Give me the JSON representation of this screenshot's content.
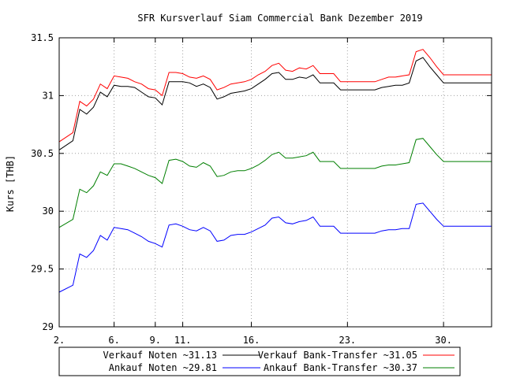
{
  "chart_data": {
    "type": "line",
    "title": "SFR Kursverlauf Siam Commercial Bank Dezember 2019",
    "ylabel": "Kurs [THB]",
    "xlabel": "",
    "xlim": [
      2,
      33.5
    ],
    "ylim": [
      29,
      31.5
    ],
    "grid": true,
    "legend_position": "bottom",
    "x_ticks": [
      {
        "x": 2,
        "label": "2."
      },
      {
        "x": 6,
        "label": "6."
      },
      {
        "x": 9,
        "label": "9."
      },
      {
        "x": 11,
        "label": "11."
      },
      {
        "x": 16,
        "label": "16."
      },
      {
        "x": 23,
        "label": "23."
      },
      {
        "x": 30,
        "label": "30."
      }
    ],
    "y_ticks": [
      {
        "y": 29,
        "label": "29"
      },
      {
        "y": 29.5,
        "label": "29.5"
      },
      {
        "y": 30,
        "label": "30"
      },
      {
        "y": 30.5,
        "label": "30.5"
      },
      {
        "y": 31,
        "label": "31"
      },
      {
        "y": 31.5,
        "label": "31.5"
      }
    ],
    "x": [
      2,
      3,
      3.5,
      4,
      4.5,
      5,
      5.5,
      6,
      6.5,
      7,
      7.5,
      8,
      8.5,
      9,
      9.5,
      10,
      10.5,
      11,
      11.5,
      12,
      12.5,
      13,
      13.5,
      14,
      14.5,
      15,
      15.5,
      16,
      16.5,
      17,
      17.5,
      18,
      18.5,
      19,
      19.5,
      20,
      20.5,
      21,
      21.5,
      22,
      22.5,
      23,
      23.5,
      24,
      24.5,
      25,
      25.5,
      26,
      26.5,
      27,
      27.5,
      28,
      28.5,
      29,
      29.5,
      30,
      30.5,
      31,
      31.5,
      32,
      32.5,
      33,
      33.5
    ],
    "series": [
      {
        "name": "Verkauf Noten ~31.13",
        "color": "#000000",
        "values": [
          30.53,
          30.61,
          30.88,
          30.84,
          30.9,
          31.03,
          30.99,
          31.09,
          31.08,
          31.08,
          31.07,
          31.03,
          30.99,
          30.98,
          30.92,
          31.12,
          31.12,
          31.12,
          31.11,
          31.08,
          31.1,
          31.07,
          30.97,
          30.99,
          31.02,
          31.03,
          31.04,
          31.06,
          31.1,
          31.14,
          31.19,
          31.2,
          31.14,
          31.14,
          31.16,
          31.15,
          31.18,
          31.11,
          31.11,
          31.11,
          31.05,
          31.05,
          31.05,
          31.05,
          31.05,
          31.05,
          31.07,
          31.08,
          31.09,
          31.09,
          31.11,
          31.3,
          31.33,
          31.25,
          31.18,
          31.11,
          31.11,
          31.11,
          31.11,
          31.11,
          31.11,
          31.11,
          31.11
        ]
      },
      {
        "name": "Ankauf Noten ~29.81",
        "color": "#0000ff",
        "values": [
          29.3,
          29.36,
          29.63,
          29.6,
          29.66,
          29.79,
          29.75,
          29.86,
          29.85,
          29.84,
          29.81,
          29.78,
          29.74,
          29.72,
          29.69,
          29.88,
          29.89,
          29.87,
          29.84,
          29.83,
          29.86,
          29.83,
          29.74,
          29.75,
          29.79,
          29.8,
          29.8,
          29.82,
          29.85,
          29.88,
          29.94,
          29.95,
          29.9,
          29.89,
          29.91,
          29.92,
          29.95,
          29.87,
          29.87,
          29.87,
          29.81,
          29.81,
          29.81,
          29.81,
          29.81,
          29.81,
          29.83,
          29.84,
          29.84,
          29.85,
          29.85,
          30.06,
          30.07,
          30.0,
          29.93,
          29.87,
          29.87,
          29.87,
          29.87,
          29.87,
          29.87,
          29.87,
          29.87
        ]
      },
      {
        "name": "Verkauf Bank-Transfer ~31.05",
        "color": "#ff0000",
        "values": [
          30.6,
          30.68,
          30.95,
          30.91,
          30.97,
          31.1,
          31.06,
          31.17,
          31.16,
          31.15,
          31.12,
          31.1,
          31.06,
          31.05,
          31.0,
          31.2,
          31.2,
          31.19,
          31.16,
          31.15,
          31.17,
          31.14,
          31.05,
          31.07,
          31.1,
          31.11,
          31.12,
          31.14,
          31.18,
          31.21,
          31.26,
          31.28,
          31.22,
          31.21,
          31.24,
          31.23,
          31.26,
          31.19,
          31.19,
          31.19,
          31.12,
          31.12,
          31.12,
          31.12,
          31.12,
          31.12,
          31.14,
          31.16,
          31.16,
          31.17,
          31.18,
          31.38,
          31.4,
          31.33,
          31.25,
          31.18,
          31.18,
          31.18,
          31.18,
          31.18,
          31.18,
          31.18,
          31.18
        ]
      },
      {
        "name": "Ankauf Bank-Transfer ~30.37",
        "color": "#007f00",
        "values": [
          29.86,
          29.93,
          30.19,
          30.16,
          30.22,
          30.34,
          30.31,
          30.41,
          30.41,
          30.39,
          30.37,
          30.34,
          30.31,
          30.29,
          30.24,
          30.44,
          30.45,
          30.43,
          30.39,
          30.38,
          30.42,
          30.39,
          30.3,
          30.31,
          30.34,
          30.35,
          30.35,
          30.37,
          30.4,
          30.44,
          30.49,
          30.51,
          30.46,
          30.46,
          30.47,
          30.48,
          30.51,
          30.43,
          30.43,
          30.43,
          30.37,
          30.37,
          30.37,
          30.37,
          30.37,
          30.37,
          30.39,
          30.4,
          30.4,
          30.41,
          30.42,
          30.62,
          30.63,
          30.56,
          30.49,
          30.43,
          30.43,
          30.43,
          30.43,
          30.43,
          30.43,
          30.43,
          30.43
        ]
      }
    ],
    "legend": [
      {
        "label": "Verkauf Noten ~31.13",
        "color": "#000000"
      },
      {
        "label": "Verkauf Bank-Transfer ~31.05",
        "color": "#ff0000"
      },
      {
        "label": "Ankauf Noten ~29.81",
        "color": "#0000ff"
      },
      {
        "label": "Ankauf Bank-Transfer ~30.37",
        "color": "#007f00"
      }
    ]
  }
}
